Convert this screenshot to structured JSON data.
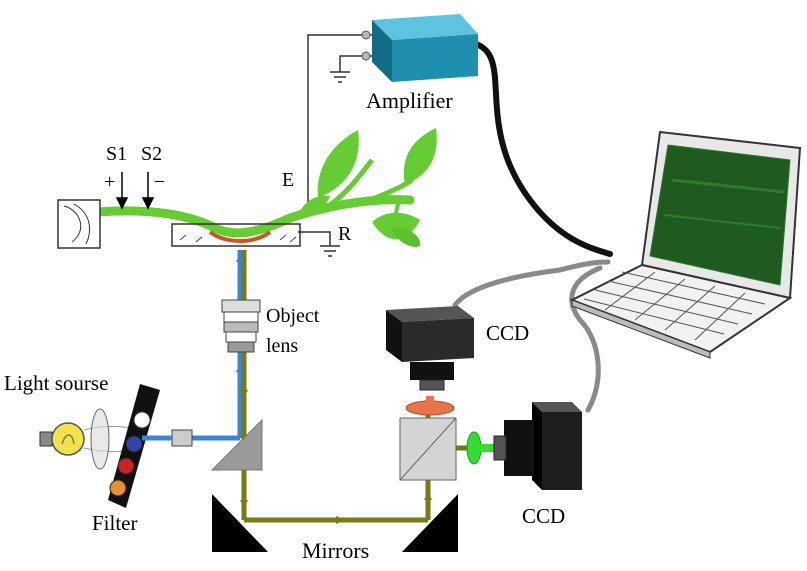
{
  "labels": {
    "amplifier": "Amplifier",
    "s1": "S1",
    "s2": "S2",
    "plus": "+",
    "minus": "−",
    "electrode_e": "E",
    "electrode_r": "R",
    "object_lens_line1": "Object",
    "object_lens_line2": "lens",
    "ccd_top": "CCD",
    "ccd_bottom": "CCD",
    "light_source": "Light sourse",
    "filter": "Filter",
    "mirrors": "Mirrors"
  },
  "colors": {
    "amplifier_body": "#1e8fae",
    "plant_green": "#66cc33",
    "excitation_beam": "#3a86d6",
    "emission_beam": "#7a7a10",
    "laptop_screen": "#1f5a1f",
    "cable_black": "#111111",
    "cable_gray": "#8a8a8a",
    "ccd_body": "#222222",
    "red_filter": "#e8744a",
    "green_filter": "#33dd33",
    "bulb_yellow": "#f3e24a"
  }
}
